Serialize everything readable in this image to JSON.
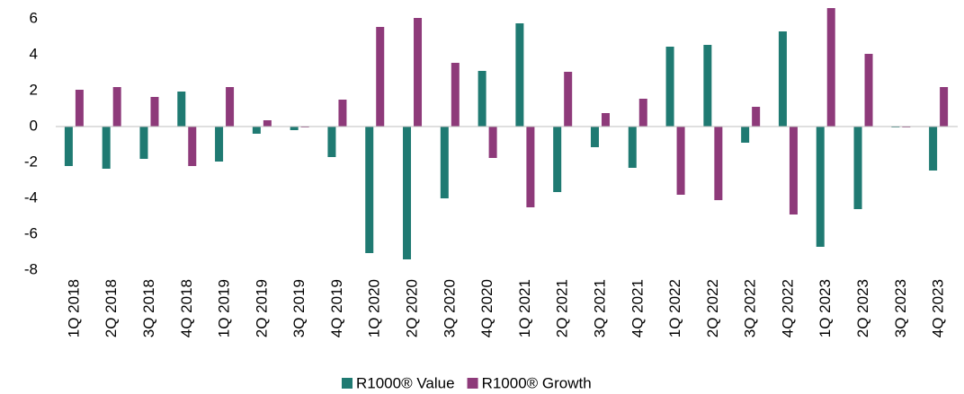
{
  "chart_data": {
    "type": "bar",
    "categories": [
      "1Q 2018",
      "2Q 2018",
      "3Q 2018",
      "4Q 2018",
      "1Q 2019",
      "2Q 2019",
      "3Q 2019",
      "4Q 2019",
      "1Q 2020",
      "2Q 2020",
      "3Q 2020",
      "4Q 2020",
      "1Q 2021",
      "2Q 2021",
      "3Q 2021",
      "4Q 2021",
      "1Q 2022",
      "2Q 2022",
      "3Q 2022",
      "4Q 2022",
      "1Q 2023",
      "2Q 2023",
      "3Q 2023",
      "4Q 2023"
    ],
    "series": [
      {
        "name": "R1000® Value",
        "color": "#1f7a72",
        "values": [
          -2.2,
          -2.35,
          -1.8,
          1.95,
          -1.95,
          -0.4,
          -0.2,
          -1.7,
          -7.05,
          -7.4,
          -4.0,
          3.1,
          5.75,
          -3.65,
          -1.15,
          -2.3,
          4.45,
          4.55,
          -0.9,
          5.3,
          -6.7,
          -4.6,
          -0.05,
          -2.45
        ]
      },
      {
        "name": "R1000® Growth",
        "color": "#8e3a7a",
        "values": [
          2.05,
          2.2,
          1.65,
          -2.2,
          2.2,
          0.35,
          -0.05,
          1.5,
          5.55,
          6.05,
          3.55,
          -1.75,
          -4.5,
          3.05,
          0.75,
          1.55,
          -3.8,
          -4.1,
          1.1,
          -4.9,
          6.6,
          4.05,
          -0.05,
          2.2
        ]
      }
    ],
    "ylim": [
      -8,
      7
    ],
    "yticks": [
      -8,
      -6,
      -4,
      -2,
      0,
      2,
      4,
      6
    ],
    "legend": "bottom"
  }
}
